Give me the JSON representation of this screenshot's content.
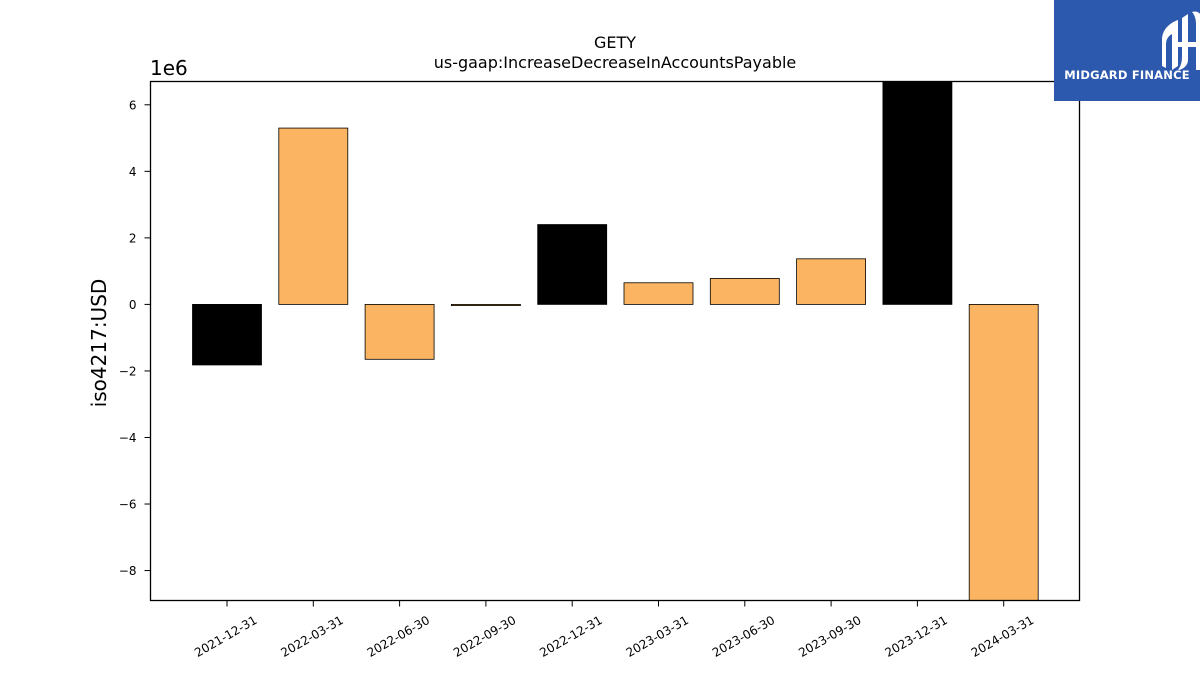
{
  "brand": {
    "name": "MIDGARD FINANCE",
    "background_color": "#2c59ad"
  },
  "chart_data": {
    "type": "bar",
    "title": "GETY",
    "subtitle": "us-gaap:IncreaseDecreaseInAccountsPayable",
    "xlabel": "",
    "ylabel": "iso4217:USD",
    "y_scale_label": "1e6",
    "y_scale": 1000000,
    "ylim": [
      -8.9,
      6.7
    ],
    "yticks": [
      -8,
      -6,
      -4,
      -2,
      0,
      2,
      4,
      6
    ],
    "ytick_labels": [
      "−8",
      "−6",
      "−4",
      "−2",
      "0",
      "2",
      "4",
      "6"
    ],
    "grid": false,
    "categories": [
      "2021-12-31",
      "2022-03-31",
      "2022-06-30",
      "2022-09-30",
      "2022-12-31",
      "2023-03-31",
      "2023-06-30",
      "2023-09-30",
      "2023-12-31",
      "2024-03-31"
    ],
    "values": [
      -1.82,
      5.3,
      -1.65,
      -0.03,
      2.4,
      0.65,
      0.78,
      1.37,
      6.9,
      -9.5
    ],
    "bar_colors": [
      "#000000",
      "#fbb462",
      "#fbb462",
      "#fbb462",
      "#000000",
      "#fbb462",
      "#fbb462",
      "#fbb462",
      "#000000",
      "#fbb462"
    ]
  }
}
